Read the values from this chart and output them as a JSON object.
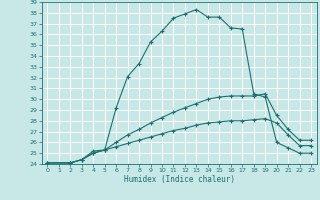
{
  "xlabel": "Humidex (Indice chaleur)",
  "xlim": [
    -0.5,
    23.5
  ],
  "ylim": [
    24,
    39
  ],
  "xticks": [
    0,
    1,
    2,
    3,
    4,
    5,
    6,
    7,
    8,
    9,
    10,
    11,
    12,
    13,
    14,
    15,
    16,
    17,
    18,
    19,
    20,
    21,
    22,
    23
  ],
  "yticks": [
    24,
    25,
    26,
    27,
    28,
    29,
    30,
    31,
    32,
    33,
    34,
    35,
    36,
    37,
    38,
    39
  ],
  "bg_color": "#c8e8e8",
  "grid_color": "#ffffff",
  "line_color": "#1a7070",
  "curves": [
    {
      "x": [
        0,
        2,
        3,
        4,
        5,
        6,
        7,
        8,
        9,
        10,
        11,
        12,
        13,
        14,
        15,
        16,
        17,
        18,
        19,
        20,
        21,
        22,
        23
      ],
      "y": [
        24.1,
        24.1,
        24.4,
        25.2,
        25.3,
        29.2,
        32.1,
        33.3,
        35.3,
        36.3,
        37.5,
        37.9,
        38.3,
        37.6,
        37.6,
        36.6,
        36.5,
        30.5,
        30.2,
        26.0,
        25.5,
        25.0,
        25.0
      ],
      "marker": "+"
    },
    {
      "x": [
        0,
        2,
        3,
        4,
        5,
        6,
        7,
        8,
        9,
        10,
        11,
        12,
        13,
        14,
        15,
        16,
        17,
        18,
        19,
        20,
        21,
        22,
        23
      ],
      "y": [
        24.1,
        24.1,
        24.4,
        25.0,
        25.3,
        26.0,
        26.7,
        27.2,
        27.8,
        28.3,
        28.8,
        29.2,
        29.6,
        30.0,
        30.2,
        30.3,
        30.3,
        30.3,
        30.5,
        28.5,
        27.2,
        26.2,
        26.2
      ],
      "marker": "+"
    },
    {
      "x": [
        0,
        2,
        3,
        4,
        5,
        6,
        7,
        8,
        9,
        10,
        11,
        12,
        13,
        14,
        15,
        16,
        17,
        18,
        19,
        20,
        21,
        22,
        23
      ],
      "y": [
        24.1,
        24.1,
        24.4,
        25.0,
        25.3,
        25.6,
        25.9,
        26.2,
        26.5,
        26.8,
        27.1,
        27.3,
        27.6,
        27.8,
        27.9,
        28.0,
        28.0,
        28.1,
        28.2,
        27.8,
        26.7,
        25.7,
        25.7
      ],
      "marker": "+"
    }
  ]
}
